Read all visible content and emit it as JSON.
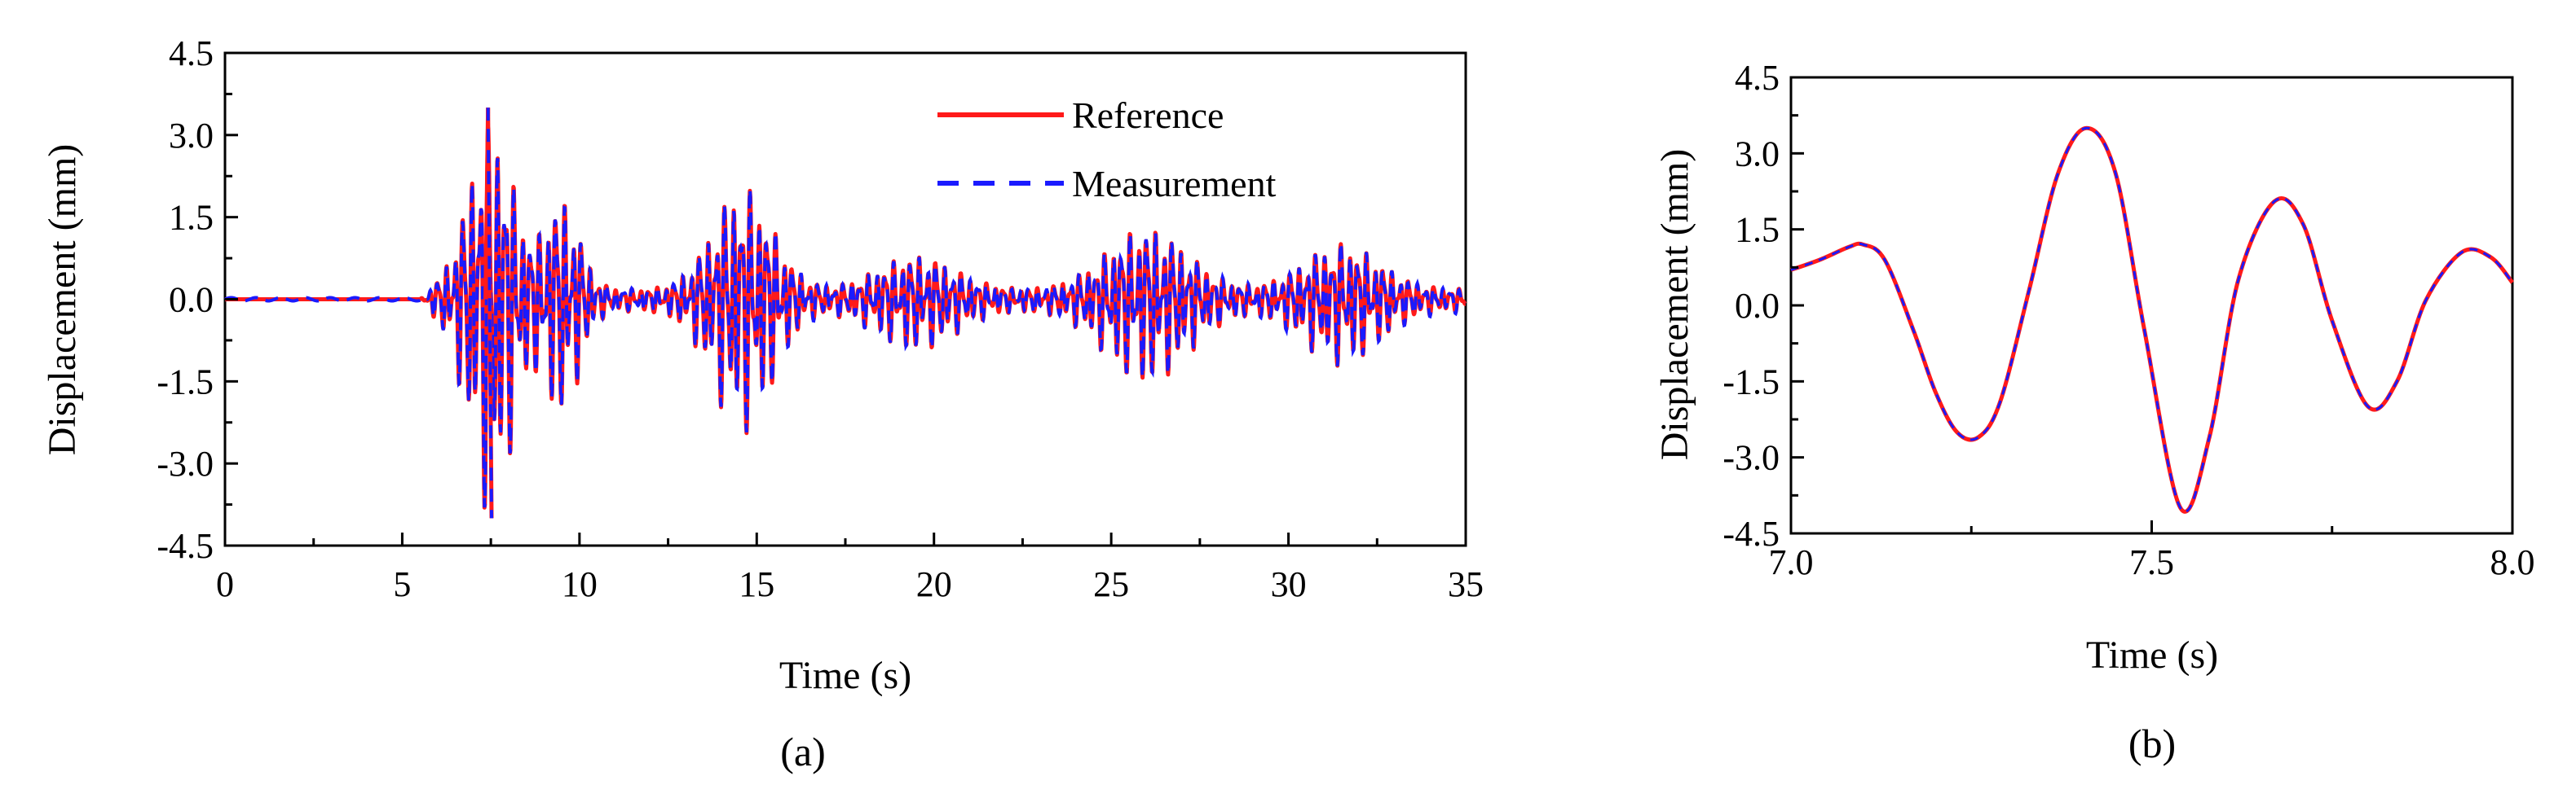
{
  "chart_data": [
    {
      "type": "line",
      "panel_label": "(a)",
      "xlabel": "Time (s)",
      "ylabel": "Displacement (mm)",
      "xlim": [
        0,
        35
      ],
      "ylim": [
        -4.5,
        4.5
      ],
      "xticks": [
        "0",
        "5",
        "10",
        "15",
        "20",
        "25",
        "30",
        "35"
      ],
      "yticks": [
        "4.5",
        "3.0",
        "1.5",
        "0.0",
        "-1.5",
        "-3.0",
        "-4.5"
      ],
      "legend": {
        "position": "top-right",
        "entries": [
          "Reference",
          "Measurement"
        ]
      },
      "series": [
        {
          "name": "Reference",
          "color": "#ff1a1a",
          "style": "solid"
        },
        {
          "name": "Measurement",
          "color": "#1a1aff",
          "style": "dashed"
        }
      ],
      "annotations": {
        "peak_max": 3.5,
        "peak_min": -4.0,
        "signal_onset_s": 5.5
      }
    },
    {
      "type": "line",
      "panel_label": "(b)",
      "xlabel": "Time (s)",
      "ylabel": "Displacement (mm)",
      "xlim": [
        7.0,
        8.0
      ],
      "ylim": [
        -4.5,
        4.5
      ],
      "xticks": [
        "7.0",
        "7.5",
        "8.0"
      ],
      "yticks": [
        "4.5",
        "3.0",
        "1.5",
        "0.0",
        "-1.5",
        "-3.0",
        "-4.5"
      ],
      "series": [
        {
          "name": "Reference",
          "color": "#ff1a1a",
          "style": "solid",
          "x": [
            7.0,
            7.04,
            7.08,
            7.1,
            7.13,
            7.17,
            7.2,
            7.23,
            7.26,
            7.29,
            7.33,
            7.37,
            7.41,
            7.45,
            7.49,
            7.54,
            7.58,
            7.62,
            7.67,
            7.71,
            7.75,
            7.8,
            7.84,
            7.88,
            7.93,
            7.97,
            8.0
          ],
          "y": [
            0.7,
            0.9,
            1.15,
            1.2,
            0.9,
            -0.5,
            -1.7,
            -2.5,
            -2.6,
            -1.9,
            0.3,
            2.6,
            3.5,
            2.6,
            -0.5,
            -4.0,
            -2.6,
            0.5,
            2.05,
            1.6,
            -0.3,
            -2.0,
            -1.5,
            0.1,
            1.05,
            0.95,
            0.45
          ]
        },
        {
          "name": "Measurement",
          "color": "#1a1aff",
          "style": "dashed",
          "x": [
            7.0,
            7.04,
            7.08,
            7.1,
            7.13,
            7.17,
            7.2,
            7.23,
            7.26,
            7.29,
            7.33,
            7.37,
            7.41,
            7.45,
            7.49,
            7.54,
            7.58,
            7.62,
            7.67,
            7.71,
            7.75,
            7.8,
            7.84,
            7.88,
            7.93,
            7.97,
            8.0
          ],
          "y": [
            0.7,
            0.9,
            1.15,
            1.2,
            0.9,
            -0.5,
            -1.7,
            -2.5,
            -2.6,
            -1.9,
            0.3,
            2.6,
            3.5,
            2.6,
            -0.5,
            -4.0,
            -2.6,
            0.5,
            2.05,
            1.6,
            -0.3,
            -2.0,
            -1.5,
            0.1,
            1.05,
            0.95,
            0.45
          ]
        }
      ]
    }
  ]
}
